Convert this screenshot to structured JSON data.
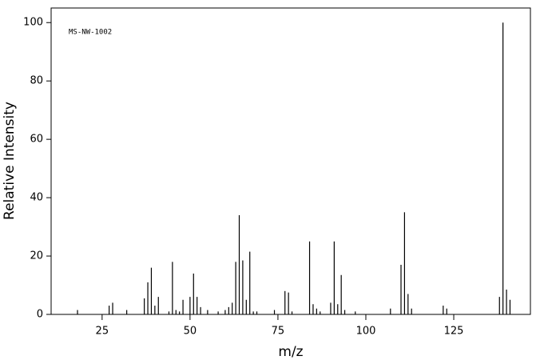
{
  "chart_data": {
    "type": "bar",
    "annotation": "MS-NW-1002",
    "x_label": "m/z",
    "y_label": "Relative Intensity",
    "color": "#000000",
    "x": [
      18,
      27,
      28,
      32,
      37,
      38,
      39,
      40,
      41,
      44,
      45,
      46,
      47,
      48,
      50,
      51,
      52,
      53,
      55,
      58,
      60,
      61,
      62,
      63,
      64,
      65,
      66,
      67,
      68,
      69,
      74,
      77,
      78,
      79,
      84,
      85,
      86,
      87,
      90,
      91,
      92,
      93,
      94,
      97,
      107,
      110,
      111,
      112,
      113,
      122,
      123,
      138,
      139,
      140,
      141
    ],
    "values": [
      1.5,
      3,
      4,
      1.5,
      5.5,
      11,
      16,
      3,
      6,
      1,
      18,
      1.5,
      1,
      5,
      6,
      14,
      6,
      2.5,
      1.5,
      1,
      1.5,
      2.5,
      4,
      18,
      34,
      18.5,
      5,
      21.5,
      1,
      1,
      1.5,
      8,
      7.5,
      1,
      25,
      3.5,
      2,
      1,
      4,
      25,
      3.5,
      13.5,
      1.5,
      1,
      2,
      17,
      35,
      7,
      2,
      3,
      2,
      6,
      100,
      8.5,
      5
    ],
    "xlim": [
      10.5,
      146.8
    ],
    "ylim": [
      0,
      105
    ],
    "xticks": [
      25,
      50,
      75,
      100,
      125
    ],
    "yticks": [
      0,
      20,
      40,
      60,
      80,
      100
    ]
  }
}
